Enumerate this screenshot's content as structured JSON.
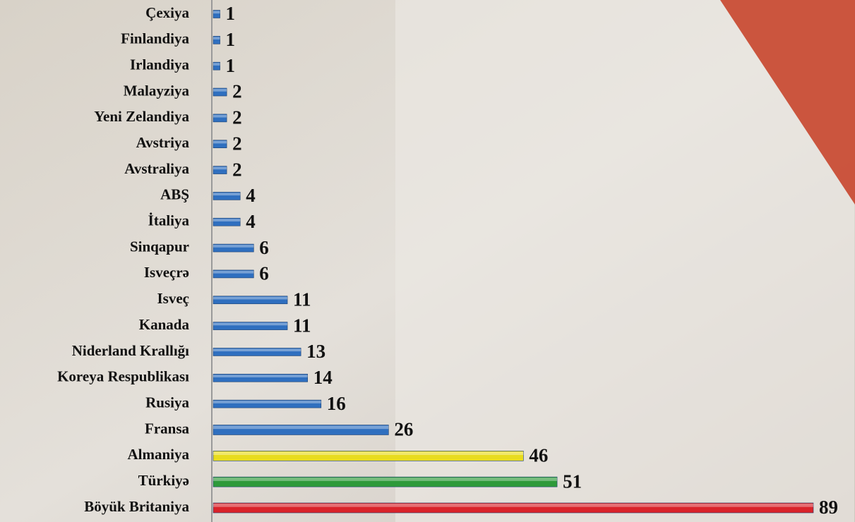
{
  "chart_data": {
    "type": "bar",
    "orientation": "horizontal",
    "categories": [
      "Çexiya",
      "Finlandiya",
      "Irlandiya",
      "Malayziya",
      "Yeni Zelandiya",
      "Avstriya",
      "Avstraliya",
      "ABŞ",
      "İtaliya",
      "Sinqapur",
      "Isveçrə",
      "Isveç",
      "Kanada",
      "Niderland Krallığı",
      "Koreya Respublikası",
      "Rusiya",
      "Fransa",
      "Almaniya",
      "Türkiyə",
      "Böyük Britaniya"
    ],
    "values": [
      1,
      1,
      1,
      2,
      2,
      2,
      2,
      4,
      4,
      6,
      6,
      11,
      11,
      13,
      14,
      16,
      26,
      46,
      51,
      89
    ],
    "colors": [
      "#2f6fbf",
      "#2f6fbf",
      "#2f6fbf",
      "#2f6fbf",
      "#2f6fbf",
      "#2f6fbf",
      "#2f6fbf",
      "#2f6fbf",
      "#2f6fbf",
      "#2f6fbf",
      "#2f6fbf",
      "#2f6fbf",
      "#2f6fbf",
      "#2f6fbf",
      "#2f6fbf",
      "#2f6fbf",
      "#2f6fbf",
      "#e8dc1e",
      "#2e9a3a",
      "#d9232a"
    ],
    "grid": false
  }
}
